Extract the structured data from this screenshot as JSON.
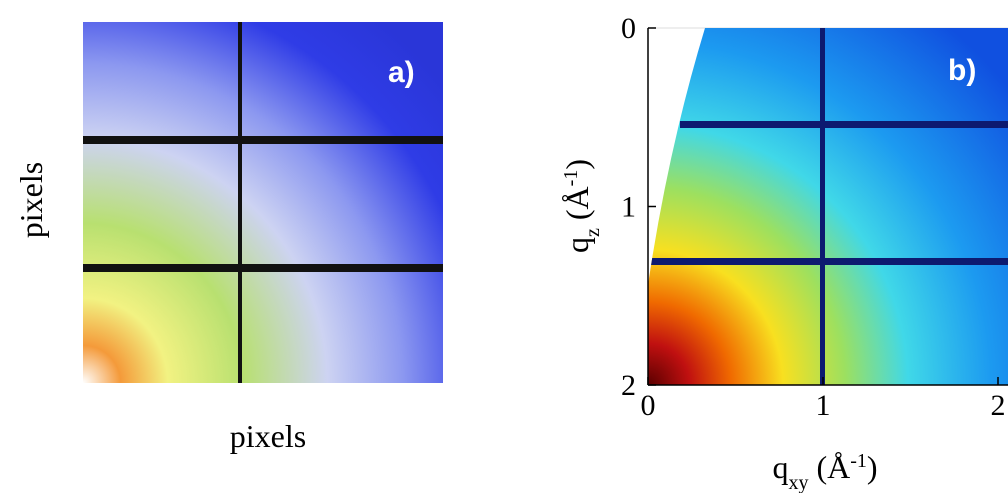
{
  "panels": [
    {
      "label": "a)",
      "xlabel": "pixels",
      "ylabel": "pixels"
    },
    {
      "label": "b)",
      "xlabel": [
        {
          "text": "q"
        },
        {
          "text": "xy",
          "shift": "sub"
        },
        {
          "text": " (Å"
        },
        {
          "text": "-1",
          "shift": "sup"
        },
        {
          "text": ")"
        }
      ],
      "ylabel": [
        {
          "text": "q"
        },
        {
          "text": "z",
          "shift": "sub"
        },
        {
          "text": " (Å"
        },
        {
          "text": "-1",
          "shift": "sup"
        },
        {
          "text": ")"
        }
      ],
      "xlim": [
        0,
        2
      ],
      "xticks": [
        0,
        1,
        2
      ],
      "ylim": [
        0,
        2
      ],
      "yticks": [
        0,
        1,
        2
      ],
      "y_inverted": true
    }
  ]
}
